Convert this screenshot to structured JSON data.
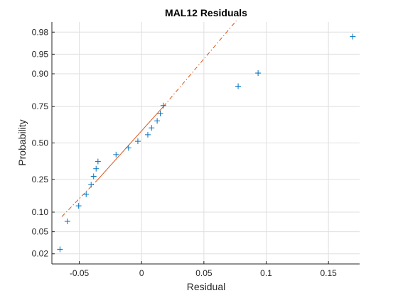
{
  "chart_data": {
    "type": "scatter",
    "title": "MAL12  Residuals",
    "xlabel": "Residual",
    "ylabel": "Probability",
    "xlim": [
      -0.072,
      0.175
    ],
    "x_ticks": [
      {
        "value": -0.05,
        "label": "-0.05"
      },
      {
        "value": 0,
        "label": "0"
      },
      {
        "value": 0.05,
        "label": "0.05"
      },
      {
        "value": 0.1,
        "label": "0.1"
      },
      {
        "value": 0.15,
        "label": "0.15"
      }
    ],
    "y_ticks": [
      {
        "value": 0.02,
        "label": "0.02"
      },
      {
        "value": 0.05,
        "label": "0.05"
      },
      {
        "value": 0.1,
        "label": "0.10"
      },
      {
        "value": 0.25,
        "label": "0.25"
      },
      {
        "value": 0.5,
        "label": "0.50"
      },
      {
        "value": 0.75,
        "label": "0.75"
      },
      {
        "value": 0.9,
        "label": "0.90"
      },
      {
        "value": 0.95,
        "label": "0.95"
      },
      {
        "value": 0.98,
        "label": "0.98"
      }
    ],
    "grid": true,
    "marker": "+",
    "marker_color": "#0072BD",
    "line_color": "#D95319",
    "points": [
      {
        "x": -0.0655,
        "p": 0.0244
      },
      {
        "x": -0.0595,
        "p": 0.0732
      },
      {
        "x": -0.0505,
        "p": 0.122
      },
      {
        "x": -0.0445,
        "p": 0.1707
      },
      {
        "x": -0.0405,
        "p": 0.2195
      },
      {
        "x": -0.0385,
        "p": 0.2683
      },
      {
        "x": -0.0365,
        "p": 0.3171
      },
      {
        "x": -0.035,
        "p": 0.3659
      },
      {
        "x": -0.0205,
        "p": 0.4146
      },
      {
        "x": -0.0105,
        "p": 0.4634
      },
      {
        "x": -0.003,
        "p": 0.5122
      },
      {
        "x": 0.005,
        "p": 0.561
      },
      {
        "x": 0.008,
        "p": 0.6098
      },
      {
        "x": 0.0125,
        "p": 0.6585
      },
      {
        "x": 0.015,
        "p": 0.7073
      },
      {
        "x": 0.0175,
        "p": 0.7561
      },
      {
        "x": 0.0775,
        "p": 0.8537
      },
      {
        "x": 0.0935,
        "p": 0.9024
      },
      {
        "x": 0.1695,
        "p": 0.9756
      }
    ],
    "reference_line": {
      "solid": {
        "x1": -0.035,
        "p1": 0.25,
        "x2": 0.0175,
        "p2": 0.75
      },
      "dashdot_lower": {
        "x1": -0.064,
        "p1": 0.0861,
        "x2": -0.035,
        "p2": 0.25
      },
      "dashdot_upper": {
        "x1": 0.0175,
        "p1": 0.75,
        "x2": 0.076,
        "p2": 0.9882
      }
    }
  }
}
